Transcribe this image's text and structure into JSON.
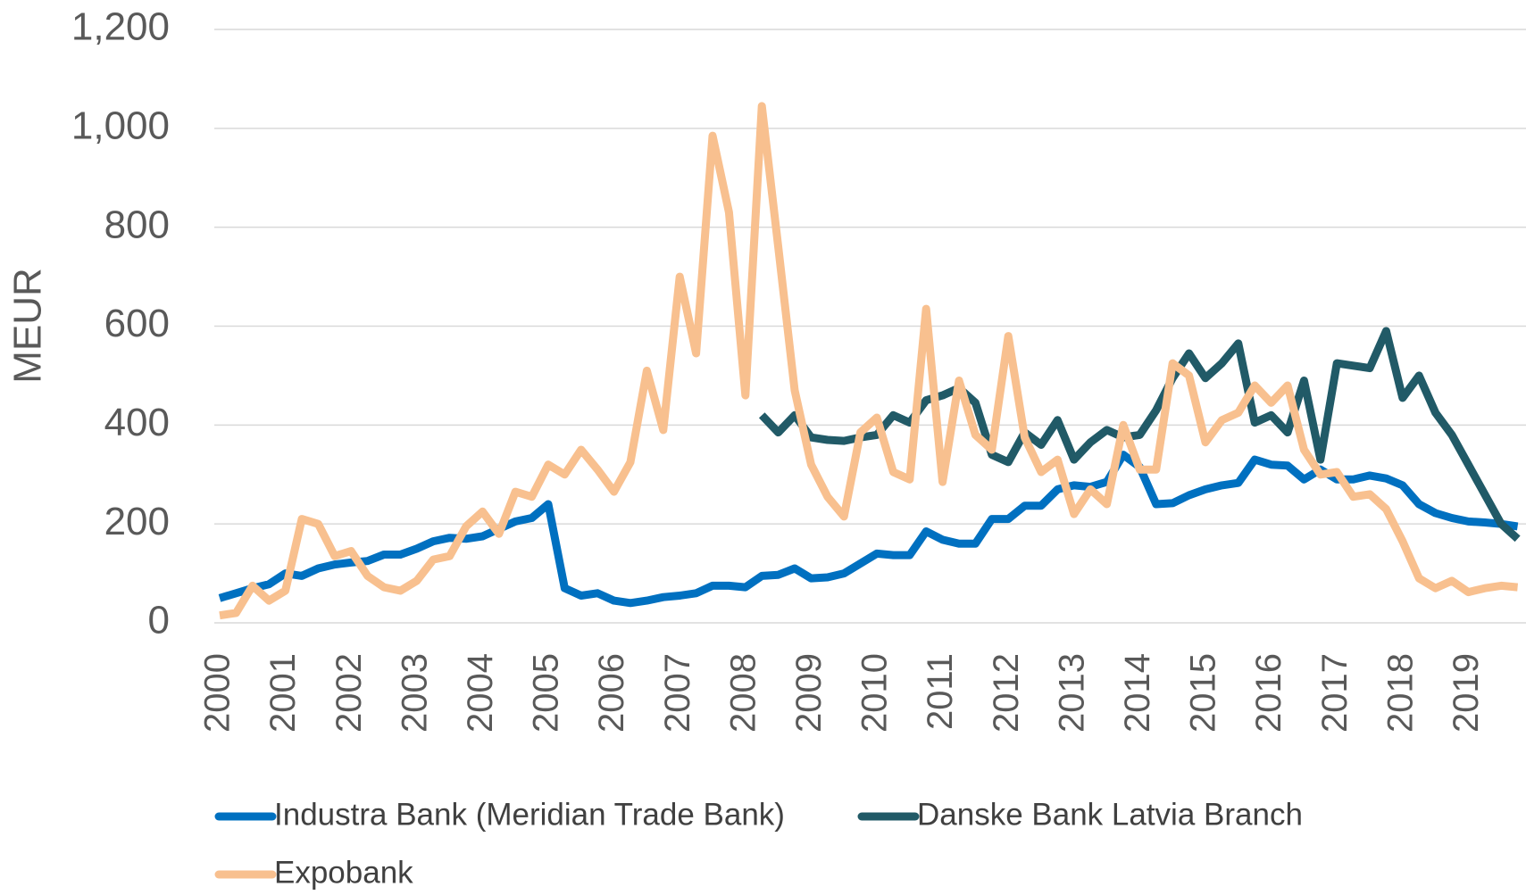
{
  "chart_data": {
    "type": "line",
    "y_label": "MEUR",
    "categories": [
      "2000",
      null,
      null,
      null,
      "2001",
      null,
      null,
      null,
      "2002",
      null,
      null,
      null,
      "2003",
      null,
      null,
      null,
      "2004",
      null,
      null,
      null,
      "2005",
      null,
      null,
      null,
      "2006",
      null,
      null,
      null,
      "2007",
      null,
      null,
      null,
      "2008",
      null,
      null,
      null,
      "2009",
      null,
      null,
      null,
      "2010",
      null,
      null,
      null,
      "2011",
      null,
      null,
      null,
      "2012",
      null,
      null,
      null,
      "2013",
      null,
      null,
      null,
      "2014",
      null,
      null,
      null,
      "2015",
      null,
      null,
      null,
      "2016",
      null,
      null,
      null,
      "2017",
      null,
      null,
      null,
      "2018",
      null,
      null,
      null,
      "2019",
      null,
      null,
      null
    ],
    "series": [
      {
        "name": "Industra Bank (Meridian Trade Bank)",
        "color": "#0070c0",
        "values": [
          50,
          60,
          70,
          78,
          100,
          95,
          110,
          118,
          122,
          125,
          138,
          138,
          150,
          165,
          172,
          170,
          175,
          190,
          205,
          212,
          240,
          70,
          55,
          60,
          45,
          40,
          45,
          52,
          55,
          60,
          75,
          75,
          72,
          95,
          97,
          110,
          90,
          92,
          100,
          120,
          140,
          137,
          137,
          185,
          168,
          160,
          160,
          210,
          210,
          237,
          237,
          270,
          278,
          275,
          285,
          340,
          315,
          240,
          242,
          258,
          270,
          278,
          283,
          330,
          320,
          318,
          290,
          310,
          290,
          290,
          298,
          292,
          278,
          240,
          222,
          212,
          205,
          203,
          200,
          195
        ]
      },
      {
        "name": "Danske Bank Latvia Branch",
        "color": "#215a67",
        "values": [
          null,
          null,
          null,
          null,
          null,
          null,
          null,
          null,
          null,
          null,
          null,
          null,
          null,
          null,
          null,
          null,
          null,
          null,
          null,
          null,
          null,
          null,
          null,
          null,
          null,
          null,
          null,
          null,
          null,
          null,
          null,
          null,
          null,
          420,
          385,
          420,
          375,
          370,
          368,
          375,
          380,
          420,
          405,
          450,
          460,
          475,
          445,
          340,
          325,
          385,
          360,
          410,
          330,
          365,
          390,
          375,
          380,
          430,
          495,
          545,
          495,
          525,
          565,
          405,
          420,
          385,
          490,
          330,
          525,
          520,
          515,
          590,
          455,
          500,
          425,
          380,
          320,
          260,
          200,
          170
        ]
      },
      {
        "name": "Expobank",
        "color": "#f8c08f",
        "values": [
          15,
          20,
          75,
          45,
          65,
          210,
          200,
          135,
          145,
          95,
          72,
          65,
          85,
          128,
          135,
          195,
          225,
          180,
          265,
          255,
          320,
          300,
          350,
          310,
          265,
          325,
          510,
          390,
          700,
          545,
          985,
          830,
          460,
          1045,
          760,
          470,
          320,
          255,
          215,
          385,
          415,
          305,
          290,
          635,
          285,
          490,
          380,
          350,
          580,
          375,
          305,
          330,
          220,
          270,
          240,
          400,
          310,
          310,
          525,
          500,
          365,
          410,
          425,
          480,
          445,
          480,
          350,
          300,
          305,
          255,
          260,
          230,
          165,
          90,
          70,
          85,
          62,
          70,
          75,
          72
        ]
      }
    ],
    "ylim": [
      0,
      1200
    ],
    "yticks": [
      0,
      200,
      400,
      600,
      800,
      {
        "value": 1000,
        "label": "1,000"
      },
      {
        "value": 1200,
        "label": "1,200"
      }
    ],
    "grid": true,
    "legend": "bottom"
  }
}
